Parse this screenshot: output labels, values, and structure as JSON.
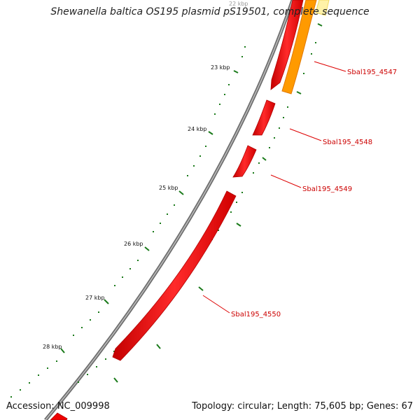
{
  "title": "Shewanella baltica OS195 plasmid pS19501, complete sequence",
  "footer": {
    "accession": "Accession: NC_009998",
    "summary": "Topology: circular; Length: 75,605 bp; Genes: 67"
  },
  "scale": {
    "labels": [
      "22 kbp",
      "23 kbp",
      "24 kbp",
      "25 kbp",
      "26 kbp",
      "27 kbp",
      "28 kbp"
    ]
  },
  "genes": [
    {
      "name": "Sbal195_4547"
    },
    {
      "name": "Sbal195_4548"
    },
    {
      "name": "Sbal195_4549"
    },
    {
      "name": "Sbal195_4550"
    }
  ],
  "colors": {
    "backbone": "#8c8c8c",
    "cds": "#ee0000",
    "cds_highlight": "#ff6a6a",
    "orange_feature": "#ff9900",
    "yellow_feature": "#ffee88",
    "ticks": "#1a7a1a",
    "gene_label": "#cc0000"
  }
}
